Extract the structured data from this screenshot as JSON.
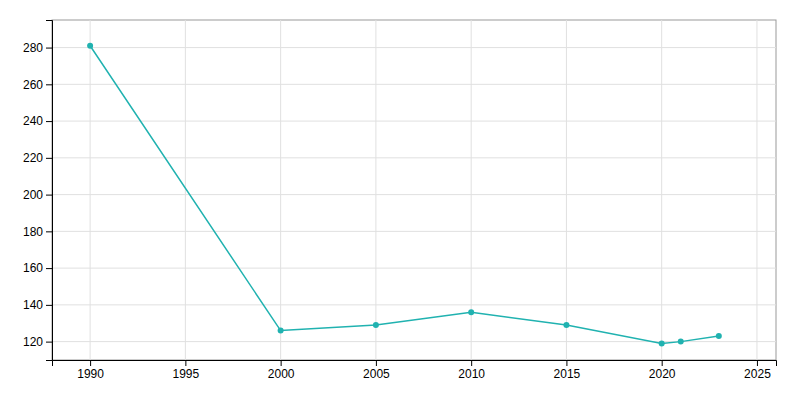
{
  "chart_data": {
    "type": "line",
    "x": [
      1990,
      2000,
      2005,
      2010,
      2015,
      2020,
      2021,
      2023
    ],
    "values": [
      281,
      126,
      129,
      136,
      129,
      119,
      120,
      123
    ],
    "color": "#20b2b0",
    "marker": "circle",
    "xlim": [
      1988,
      2026
    ],
    "ylim": [
      110,
      295
    ],
    "xticks": [
      1990,
      1995,
      2000,
      2005,
      2010,
      2015,
      2020,
      2025
    ],
    "yticks": [
      120,
      140,
      160,
      180,
      200,
      220,
      240,
      260,
      280
    ],
    "grid": true
  }
}
